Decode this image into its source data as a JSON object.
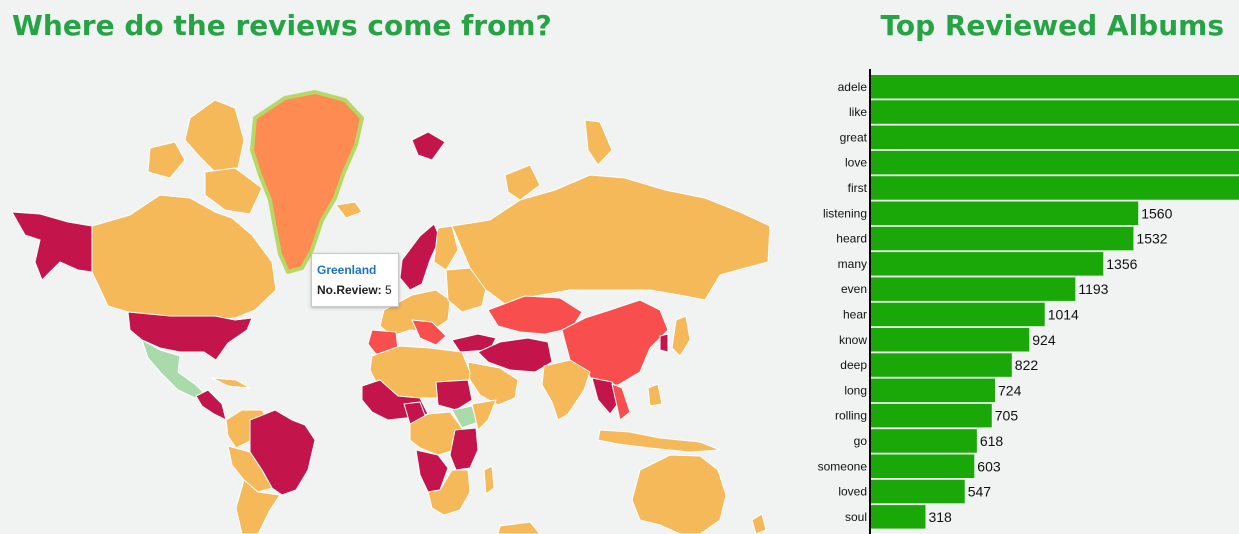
{
  "map": {
    "title": "Where do the reviews come from?",
    "tooltip": {
      "country": "Greenland",
      "label": "No.Review:",
      "value": "5"
    },
    "colors": {
      "very_high": "#c4144c",
      "high": "#f84e4e",
      "medium_high": "#fd8b52",
      "medium": "#f5b95a",
      "low": "#a8dba9",
      "hover_outline": "#b6d865"
    }
  },
  "bar": {
    "title": "Top Reviewed Albums",
    "color": "#19a808"
  },
  "chart_data": {
    "type": "bar",
    "orientation": "horizontal",
    "categories": [
      "adele",
      "like",
      "great",
      "love",
      "first",
      "listening",
      "heard",
      "many",
      "even",
      "hear",
      "know",
      "deep",
      "long",
      "rolling",
      "go",
      "someone",
      "loved",
      "soul"
    ],
    "values": [
      null,
      null,
      null,
      null,
      null,
      1560,
      1532,
      1356,
      1193,
      1014,
      924,
      822,
      724,
      705,
      618,
      603,
      547,
      318
    ],
    "value_labels": [
      "",
      "",
      "",
      "",
      "",
      "1560",
      "1532",
      "1356",
      "1193",
      "1014",
      "924",
      "822",
      "724",
      "705",
      "618",
      "603",
      "547",
      "318"
    ],
    "xlim": [
      0,
      2160
    ]
  }
}
